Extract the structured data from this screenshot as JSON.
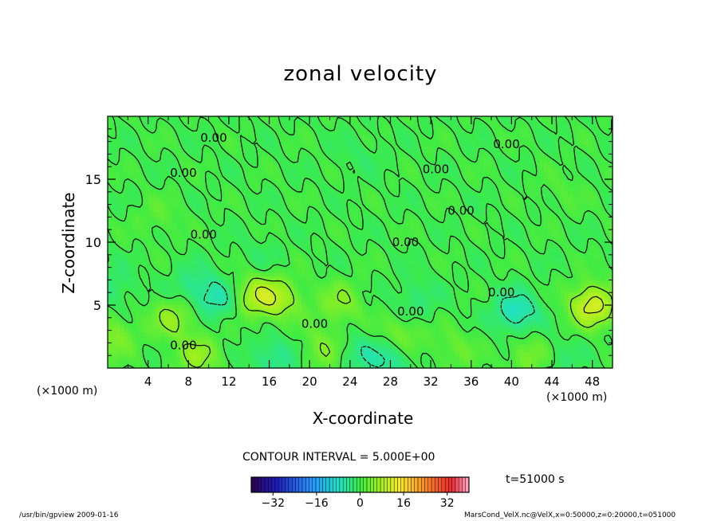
{
  "chart_data": {
    "type": "heatmap",
    "title": "zonal velocity",
    "xlabel": "X-coordinate",
    "ylabel": "Z-coordinate",
    "x_unit": "(×1000 m)",
    "xlim": [
      0,
      50
    ],
    "ylim": [
      0,
      20
    ],
    "x_ticks": [
      4,
      8,
      12,
      16,
      20,
      24,
      28,
      32,
      36,
      40,
      44,
      48
    ],
    "y_ticks": [
      5,
      10,
      15
    ],
    "contour_labels": [
      {
        "x": 10.5,
        "z": 18.3,
        "label": "0.00"
      },
      {
        "x": 7.5,
        "z": 15.5,
        "label": "0.00"
      },
      {
        "x": 32.5,
        "z": 15.8,
        "label": "0.00"
      },
      {
        "x": 39.5,
        "z": 17.8,
        "label": "0.00"
      },
      {
        "x": 35.0,
        "z": 12.5,
        "label": "0.00"
      },
      {
        "x": 9.5,
        "z": 10.6,
        "label": "0.00"
      },
      {
        "x": 29.5,
        "z": 10.0,
        "label": "0.00"
      },
      {
        "x": 39.0,
        "z": 6.0,
        "label": "0.00"
      },
      {
        "x": 30.0,
        "z": 4.5,
        "label": "0.00"
      },
      {
        "x": 20.5,
        "z": 3.5,
        "label": "0.00"
      },
      {
        "x": 7.5,
        "z": 1.8,
        "label": "0.00"
      }
    ],
    "features": [
      {
        "x": 48.0,
        "z": 5.0,
        "value": 12,
        "kind": "max"
      },
      {
        "x": 14.5,
        "z": 5.8,
        "value": 8,
        "kind": "max"
      },
      {
        "x": 17.0,
        "z": 5.5,
        "value": 7,
        "kind": "max"
      },
      {
        "x": 6.5,
        "z": 4.0,
        "value": 6,
        "kind": "max"
      },
      {
        "x": 23.0,
        "z": 5.2,
        "value": 5,
        "kind": "max"
      },
      {
        "x": 29.0,
        "z": 2.5,
        "value": 5,
        "kind": "max"
      },
      {
        "x": 9.0,
        "z": 1.0,
        "value": 6,
        "kind": "max"
      },
      {
        "x": 0.5,
        "z": 2.5,
        "value": 5,
        "kind": "max"
      },
      {
        "x": 21.5,
        "z": 1.5,
        "value": 5,
        "kind": "max"
      },
      {
        "x": 42.0,
        "z": 1.0,
        "value": 5,
        "kind": "max"
      },
      {
        "x": 34.5,
        "z": 1.5,
        "value": 3,
        "kind": "max"
      },
      {
        "x": 40.5,
        "z": 4.5,
        "value": -8,
        "kind": "min"
      },
      {
        "x": 11.0,
        "z": 5.5,
        "value": -6,
        "kind": "min"
      },
      {
        "x": 8.5,
        "z": 6.5,
        "value": -4,
        "kind": "min"
      },
      {
        "x": 28.0,
        "z": 0.8,
        "value": -6,
        "kind": "min"
      },
      {
        "x": 16.5,
        "z": 0.8,
        "value": -5,
        "kind": "min"
      },
      {
        "x": 24.5,
        "z": 1.2,
        "value": -4,
        "kind": "min"
      },
      {
        "x": 44.5,
        "z": 0.8,
        "value": -3,
        "kind": "min"
      },
      {
        "x": 30.5,
        "z": 5.5,
        "value": -3,
        "kind": "min"
      },
      {
        "x": 0.5,
        "z": 6.5,
        "value": -3,
        "kind": "min"
      },
      {
        "x": 5.0,
        "z": 12.0,
        "value": 2,
        "kind": "max"
      },
      {
        "x": 25.0,
        "z": 17.0,
        "value": -1.5,
        "kind": "min"
      },
      {
        "x": 15.0,
        "z": 9.0,
        "value": -1.5,
        "kind": "min"
      },
      {
        "x": 45.0,
        "z": 14.0,
        "value": 1.5,
        "kind": "max"
      }
    ],
    "colorbar": {
      "min": -40,
      "max": 40,
      "tick_labels": [
        "−32",
        "−16",
        "0",
        "16",
        "32"
      ],
      "tick_values": [
        -32,
        -16,
        0,
        16,
        32
      ]
    },
    "contour_interval_label": "CONTOUR INTERVAL = 5.000E+00",
    "time_label": "t=51000 s"
  },
  "footer": {
    "left": "/usr/bin/gpview  2009-01-16",
    "right": "MarsCond_VelX.nc@VelX,x=0:50000,z=0:20000,t=051000"
  }
}
